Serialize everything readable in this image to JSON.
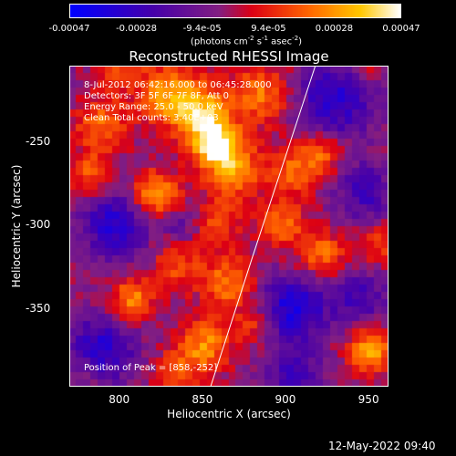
{
  "chart_data": {
    "type": "heatmap",
    "title": "Reconstructed RHESSI Image",
    "xlabel": "Heliocentric X (arcsec)",
    "ylabel": "Heliocentric Y (arcsec)",
    "xlim": [
      770,
      962
    ],
    "ylim": [
      -397,
      -205
    ],
    "x_ticks": [
      "800",
      "850",
      "900",
      "950"
    ],
    "x_tick_values": [
      800,
      850,
      900,
      950
    ],
    "y_ticks": [
      "-250",
      "-300",
      "-350"
    ],
    "y_tick_values": [
      -250,
      -300,
      -350
    ],
    "colorbar": {
      "min": -0.00047,
      "max": 0.00047,
      "tick_labels": [
        "-0.00047",
        "-0.00028",
        "-9.4e-05",
        "9.4e-05",
        "0.00028",
        "0.00047"
      ],
      "tick_values": [
        -0.00047,
        -0.00028,
        -9.4e-05,
        9.4e-05,
        0.00028,
        0.00047
      ],
      "units_line1": "(photons cm",
      "units_exp1": "-2",
      "units_mid": " s",
      "units_exp2": "-1",
      "units_mid2": " asec",
      "units_exp3": "-2",
      "units_end": ")"
    },
    "annotations": {
      "time_range": "8-Jul-2012 06:42:16.000 to 06:45:28.000",
      "detectors": "Detectors: 3F 5F 6F 7F 8F, Att 0",
      "energy": "Energy Range: 25.0 - 50.0 keV",
      "clean": "Clean     Total counts: 3.40E+03",
      "peak": "Position of Peak = [858,-252]"
    },
    "peak": [
      858,
      -252
    ],
    "limb_points": [
      [
        855,
        -397
      ],
      [
        880,
        -320
      ],
      [
        918,
        -205
      ]
    ],
    "blobs": [
      {
        "x": 858,
        "y": -252,
        "v": 0.00047,
        "s": 10
      },
      {
        "x": 848,
        "y": -232,
        "v": 0.00036,
        "s": 12
      },
      {
        "x": 828,
        "y": -222,
        "v": 0.0003,
        "s": 12
      },
      {
        "x": 885,
        "y": -222,
        "v": 0.00026,
        "s": 13
      },
      {
        "x": 870,
        "y": -268,
        "v": 0.0003,
        "s": 12
      },
      {
        "x": 822,
        "y": -282,
        "v": 0.00034,
        "s": 10
      },
      {
        "x": 790,
        "y": -240,
        "v": 0.00026,
        "s": 11
      },
      {
        "x": 783,
        "y": -270,
        "v": 0.00022,
        "s": 9
      },
      {
        "x": 905,
        "y": -268,
        "v": 0.00024,
        "s": 10
      },
      {
        "x": 922,
        "y": -258,
        "v": 0.00022,
        "s": 9
      },
      {
        "x": 922,
        "y": -318,
        "v": 0.00026,
        "s": 10
      },
      {
        "x": 898,
        "y": -300,
        "v": 0.00024,
        "s": 10
      },
      {
        "x": 858,
        "y": -300,
        "v": 0.0002,
        "s": 10
      },
      {
        "x": 866,
        "y": -335,
        "v": 0.00028,
        "s": 11
      },
      {
        "x": 852,
        "y": -372,
        "v": 0.0003,
        "s": 11
      },
      {
        "x": 882,
        "y": -360,
        "v": 0.00018,
        "s": 8
      },
      {
        "x": 808,
        "y": -345,
        "v": 0.0003,
        "s": 9
      },
      {
        "x": 835,
        "y": -325,
        "v": 0.0002,
        "s": 10
      },
      {
        "x": 835,
        "y": -388,
        "v": 0.0002,
        "s": 9
      },
      {
        "x": 952,
        "y": -375,
        "v": 0.00034,
        "s": 10
      },
      {
        "x": 958,
        "y": -312,
        "v": 0.0002,
        "s": 8
      },
      {
        "x": 800,
        "y": -205,
        "v": 0.0002,
        "s": 10
      },
      {
        "x": 950,
        "y": -205,
        "v": 0.00012,
        "s": 8
      },
      {
        "x": 780,
        "y": -390,
        "v": 8e-05,
        "s": 8
      },
      {
        "x": 798,
        "y": -300,
        "v": -0.0003,
        "s": 14
      },
      {
        "x": 790,
        "y": -375,
        "v": -0.0003,
        "s": 14
      },
      {
        "x": 930,
        "y": -225,
        "v": -0.0003,
        "s": 16
      },
      {
        "x": 905,
        "y": -350,
        "v": -0.00034,
        "s": 14
      },
      {
        "x": 905,
        "y": -390,
        "v": -0.00024,
        "s": 11
      },
      {
        "x": 948,
        "y": -280,
        "v": -0.00022,
        "s": 12
      },
      {
        "x": 945,
        "y": -345,
        "v": -0.0002,
        "s": 12
      },
      {
        "x": 838,
        "y": -300,
        "v": -0.00014,
        "s": 8
      }
    ]
  },
  "footer": {
    "timestamp": "12-May-2022 09:40"
  }
}
